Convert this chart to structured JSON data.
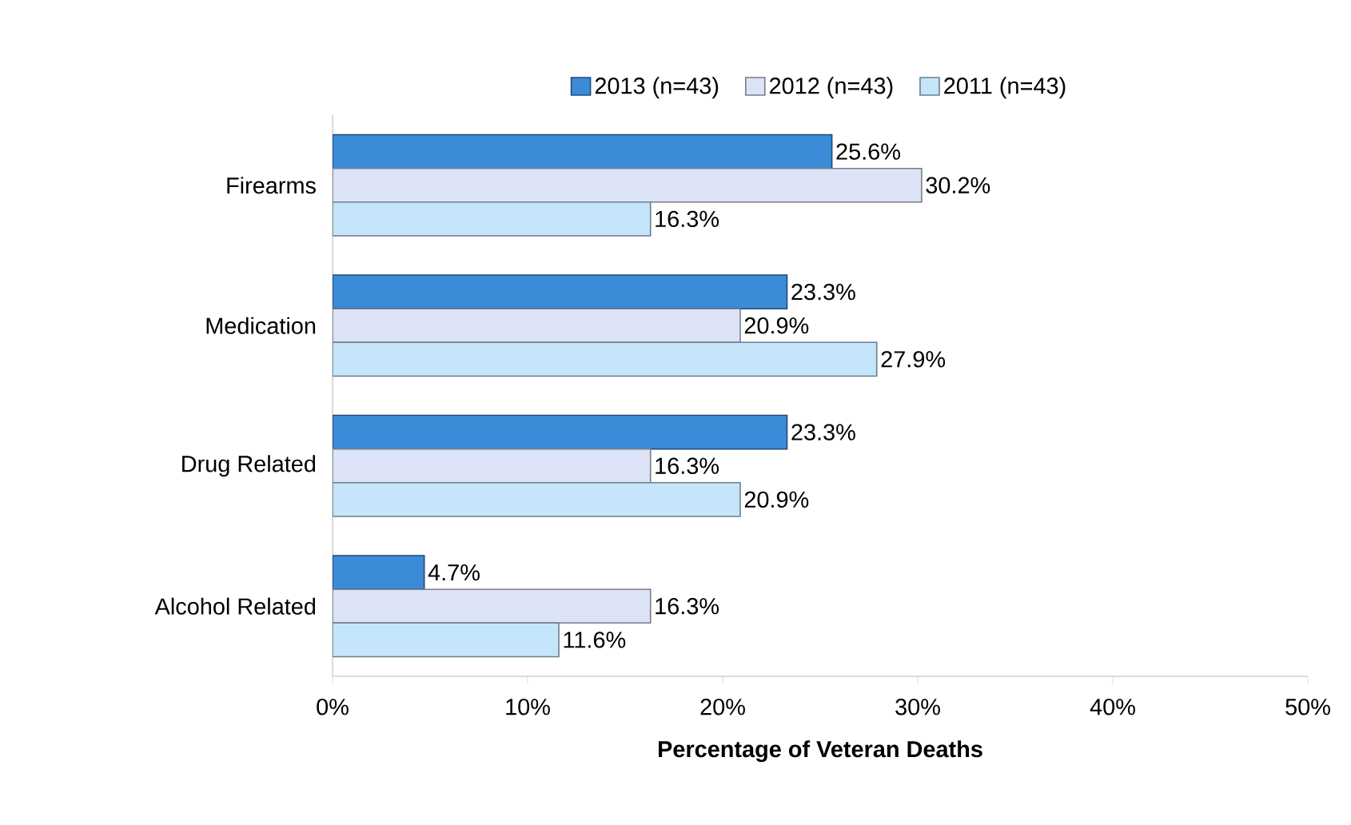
{
  "chart_data": {
    "type": "bar",
    "orientation": "horizontal",
    "xlabel": "Percentage of Veteran Deaths",
    "categories": [
      "Firearms",
      "Medication",
      "Drug Related",
      "Alcohol Related"
    ],
    "series": [
      {
        "name": "2013 (n=43)",
        "color": "#3b8bd8",
        "values": [
          25.6,
          23.3,
          23.3,
          4.7
        ],
        "value_labels": [
          "25.6%",
          "23.3%",
          "23.3%",
          "4.7%"
        ]
      },
      {
        "name": "2012 (n=43)",
        "color": "#dde3f7",
        "values": [
          30.2,
          20.9,
          16.3,
          16.3
        ],
        "value_labels": [
          "30.2%",
          "20.9%",
          "16.3%",
          "16.3%"
        ]
      },
      {
        "name": "2011 (n=43)",
        "color": "#c5e6fa",
        "values": [
          16.3,
          27.9,
          20.9,
          11.6
        ],
        "value_labels": [
          "16.3%",
          "27.9%",
          "20.9%",
          "11.6%"
        ]
      }
    ],
    "xlim": [
      0,
      50
    ],
    "xticks": [
      {
        "value": 0,
        "label": "0%"
      },
      {
        "value": 10,
        "label": "10%"
      },
      {
        "value": 20,
        "label": "20%"
      },
      {
        "value": 30,
        "label": "30%"
      },
      {
        "value": 40,
        "label": "40%"
      },
      {
        "value": 50,
        "label": "50%"
      }
    ],
    "legend": "top",
    "grid": false
  }
}
